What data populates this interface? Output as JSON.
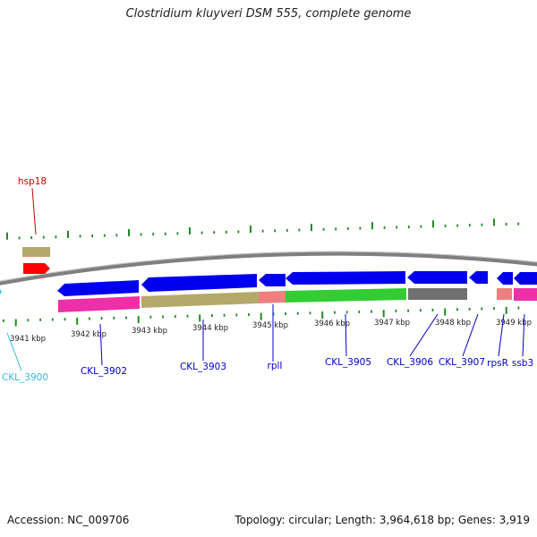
{
  "title": "Clostridium kluyveri DSM 555, complete genome",
  "footer": {
    "accession": "Accession: NC_009706",
    "summary": "Topology: circular; Length: 3,964,618 bp; Genes: 3,919"
  },
  "scale": {
    "ticks": [
      "3941 kbp",
      "3942 kbp",
      "3943 kbp",
      "3944 kbp",
      "3945 kbp",
      "3946 kbp",
      "3947 kbp",
      "3948 kbp",
      "3949 kbp"
    ]
  },
  "genes": [
    {
      "label": "hsp18",
      "color": "#cc0000"
    },
    {
      "label": "CKL_3900",
      "color": "#33bbdd"
    },
    {
      "label": "CKL_3902",
      "color": "#0000cc"
    },
    {
      "label": "CKL_3903",
      "color": "#0000cc"
    },
    {
      "label": "rplI",
      "color": "#0000cc"
    },
    {
      "label": "CKL_3905",
      "color": "#0000cc"
    },
    {
      "label": "CKL_3906",
      "color": "#0000cc"
    },
    {
      "label": "CKL_3907",
      "color": "#0000cc"
    },
    {
      "label": "rpsR",
      "color": "#0000cc"
    },
    {
      "label": "ssb3",
      "color": "#0000cc"
    }
  ],
  "colors": {
    "backbone": "#7f7f7f",
    "tick": "#228b22",
    "gene_arrow": "#0000ee",
    "khaki": "#b2a96b",
    "magenta": "#ee2fa8",
    "green": "#33cc33",
    "salmon": "#ee7f7f",
    "gray": "#707070",
    "red": "#ff0000"
  }
}
